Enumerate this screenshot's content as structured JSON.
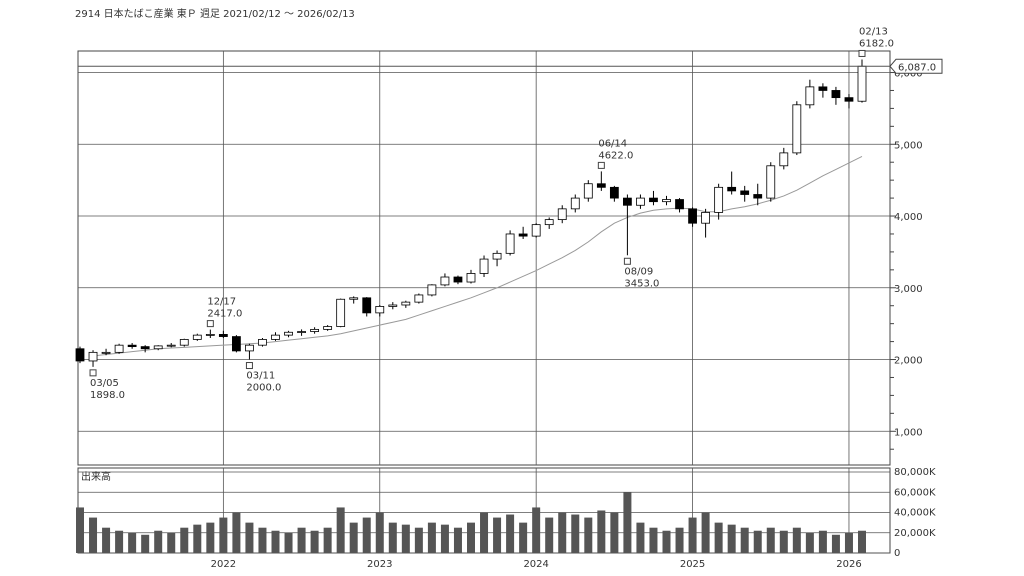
{
  "chart_data": {
    "type": "candlestick",
    "title": "2914 日本たばこ産業 東Ｐ 週足 2021/02/12 ～ 2026/02/13",
    "volume_title": "出来高",
    "categories": [
      null,
      null,
      null,
      null,
      null,
      null,
      null,
      null,
      null,
      null,
      null,
      "2022",
      null,
      null,
      null,
      null,
      null,
      null,
      null,
      null,
      null,
      null,
      null,
      "2023",
      null,
      null,
      null,
      null,
      null,
      null,
      null,
      null,
      null,
      null,
      null,
      "2024",
      null,
      null,
      null,
      null,
      null,
      null,
      null,
      null,
      null,
      null,
      null,
      "2025",
      null,
      null,
      null,
      null,
      null,
      null,
      null,
      null,
      null,
      null,
      null,
      "2026",
      null
    ],
    "open": [
      2150,
      1980,
      2100,
      2100,
      2200,
      2180,
      2150,
      2190,
      2200,
      2280,
      2340,
      2350,
      2320,
      2120,
      2200,
      2280,
      2340,
      2380,
      2390,
      2420,
      2460,
      2840,
      2860,
      2650,
      2740,
      2760,
      2800,
      2900,
      3040,
      3150,
      3080,
      3200,
      3400,
      3480,
      3750,
      3720,
      3880,
      3950,
      4100,
      4250,
      4450,
      4400,
      4250,
      4150,
      4250,
      4200,
      4230,
      4100,
      3900,
      4050,
      4400,
      4350,
      4300,
      4250,
      4700,
      4880,
      5550,
      5800,
      5750,
      5650,
      5600
    ],
    "high": [
      2180,
      2130,
      2150,
      2220,
      2230,
      2200,
      2200,
      2230,
      2290,
      2360,
      2417,
      2400,
      2340,
      2220,
      2300,
      2380,
      2400,
      2420,
      2450,
      2480,
      2850,
      2880,
      2870,
      2760,
      2800,
      2820,
      2920,
      3050,
      3200,
      3170,
      3250,
      3450,
      3520,
      3800,
      3850,
      3900,
      3980,
      4150,
      4300,
      4500,
      4622,
      4420,
      4300,
      4300,
      4350,
      4280,
      4250,
      4120,
      4100,
      4450,
      4620,
      4420,
      4450,
      4750,
      4950,
      5600,
      5900,
      5850,
      5800,
      5700,
      6182
    ],
    "low": [
      1950,
      1898,
      2060,
      2080,
      2150,
      2100,
      2130,
      2170,
      2180,
      2260,
      2300,
      2300,
      2100,
      2000,
      2180,
      2260,
      2310,
      2330,
      2360,
      2400,
      2450,
      2780,
      2600,
      2600,
      2700,
      2720,
      2780,
      2880,
      3020,
      3050,
      3060,
      3150,
      3300,
      3450,
      3680,
      3700,
      3820,
      3900,
      4050,
      4200,
      4350,
      4200,
      3453,
      4100,
      4150,
      4150,
      4050,
      3850,
      3700,
      3950,
      4300,
      4200,
      4150,
      4200,
      4650,
      4850,
      5500,
      5650,
      5550,
      5500,
      5580
    ],
    "close": [
      1980,
      2100,
      2100,
      2200,
      2180,
      2150,
      2190,
      2200,
      2280,
      2340,
      2350,
      2320,
      2120,
      2200,
      2280,
      2340,
      2380,
      2390,
      2420,
      2460,
      2840,
      2860,
      2650,
      2740,
      2760,
      2800,
      2900,
      3040,
      3150,
      3080,
      3200,
      3400,
      3480,
      3750,
      3720,
      3880,
      3950,
      4100,
      4250,
      4450,
      4400,
      4250,
      4150,
      4250,
      4200,
      4230,
      4100,
      3900,
      4050,
      4400,
      4350,
      4300,
      4250,
      4700,
      4880,
      5550,
      5800,
      5750,
      5650,
      5600,
      6087
    ],
    "moving_average": [
      null,
      2050,
      2070,
      2090,
      2110,
      2130,
      2150,
      2160,
      2170,
      2180,
      2190,
      2200,
      2210,
      2220,
      2230,
      2250,
      2270,
      2290,
      2310,
      2330,
      2360,
      2400,
      2440,
      2480,
      2520,
      2560,
      2620,
      2680,
      2740,
      2800,
      2860,
      2930,
      3000,
      3080,
      3160,
      3240,
      3330,
      3420,
      3520,
      3640,
      3780,
      3900,
      3980,
      4040,
      4080,
      4100,
      4110,
      4100,
      4060,
      4060,
      4100,
      4130,
      4170,
      4220,
      4280,
      4360,
      4460,
      4560,
      4650,
      4740,
      4830
    ],
    "volume": [
      45000,
      35000,
      25000,
      22000,
      20000,
      18000,
      22000,
      20000,
      25000,
      28000,
      30000,
      35000,
      40000,
      30000,
      25000,
      22000,
      20000,
      25000,
      22000,
      25000,
      45000,
      30000,
      35000,
      40000,
      30000,
      28000,
      25000,
      30000,
      28000,
      25000,
      30000,
      40000,
      35000,
      38000,
      30000,
      45000,
      35000,
      40000,
      38000,
      35000,
      42000,
      40000,
      60000,
      30000,
      25000,
      22000,
      25000,
      35000,
      40000,
      30000,
      28000,
      25000,
      22000,
      25000,
      22000,
      25000,
      20000,
      22000,
      18000,
      20000,
      22000
    ],
    "ylim": [
      530,
      6300
    ],
    "yticks": [
      {
        "value": 1000,
        "label": "1,000"
      },
      {
        "value": 2000,
        "label": "2,000"
      },
      {
        "value": 3000,
        "label": "3,000"
      },
      {
        "value": 4000,
        "label": "4,000"
      },
      {
        "value": 5000,
        "label": "5,000"
      },
      {
        "value": 6000,
        "label": "6,000"
      }
    ],
    "minor_yticks": [
      750,
      1250,
      1500,
      1750,
      2250,
      2500,
      2750,
      3250,
      3500,
      3750,
      4250,
      4500,
      4750,
      5250,
      5500,
      5750
    ],
    "volume_ylim": [
      0,
      82000
    ],
    "volume_yticks": [
      0,
      {
        "value": 20000,
        "label": "20,000K"
      },
      {
        "value": 40000,
        "label": "40,000K"
      },
      {
        "value": 60000,
        "label": "60,000K"
      },
      {
        "value": 80000,
        "label": "80,000K"
      }
    ],
    "last_price": {
      "value": 6087,
      "label": "6,087.0"
    },
    "annotations": [
      {
        "date": "03/05",
        "value": 1898,
        "label": "1898.0"
      },
      {
        "date": "12/17",
        "value": 2417,
        "label": "2417.0"
      },
      {
        "date": "03/11",
        "value": 2000,
        "label": "2000.0"
      },
      {
        "date": "06/14",
        "value": 4622,
        "label": "4622.0"
      },
      {
        "date": "08/09",
        "value": 3453,
        "label": "3453.0"
      },
      {
        "date": "02/13",
        "value": 6182,
        "label": "6182.0"
      }
    ],
    "up_color": "#ffffff",
    "down_color": "#000000",
    "volume_color": "#555555",
    "ma_color": "#999999",
    "grid": true
  }
}
